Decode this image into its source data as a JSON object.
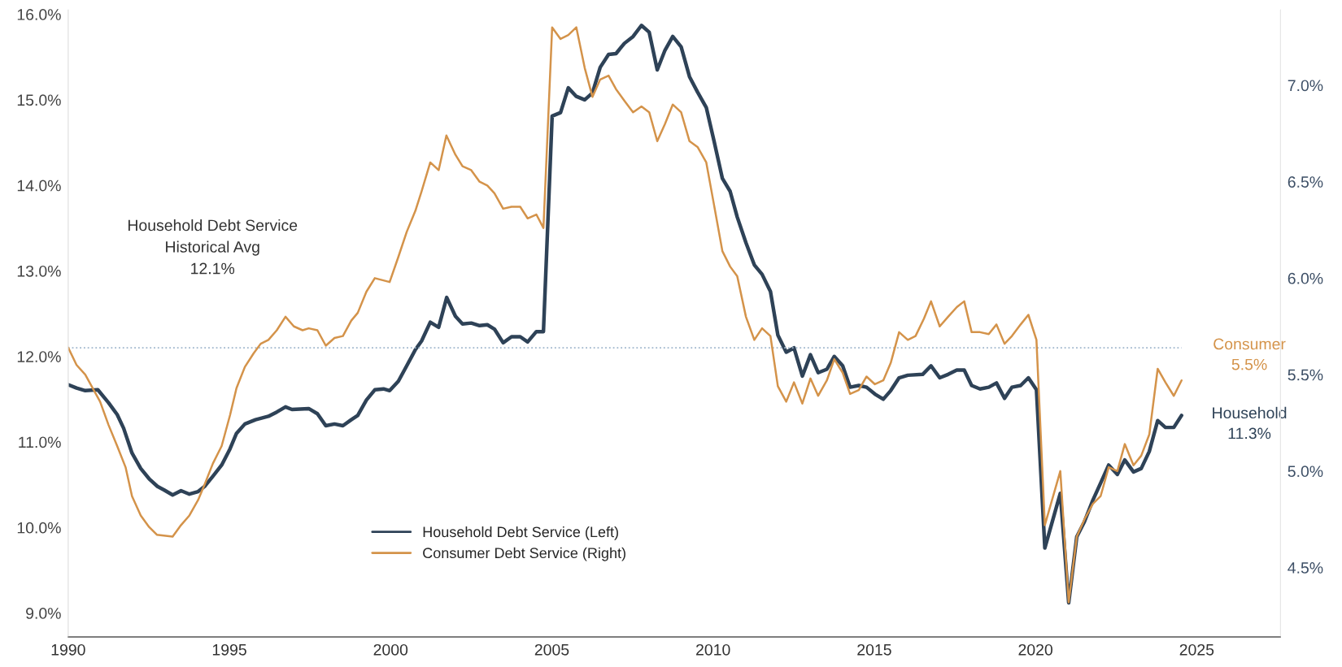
{
  "chart_data": {
    "type": "line",
    "xlim": [
      1990,
      2027.6
    ],
    "xticks": [
      1990,
      1995,
      2000,
      2005,
      2010,
      2015,
      2020,
      2025
    ],
    "ylim": [
      8.72,
      16.05
    ],
    "yticks": [
      {
        "value": 9,
        "label": "9.0%"
      },
      {
        "value": 10,
        "label": "10.0%"
      },
      {
        "value": 11,
        "label": "11.0%"
      },
      {
        "value": 12,
        "label": "12.0%"
      },
      {
        "value": 13,
        "label": "13.0%"
      },
      {
        "value": 14,
        "label": "14.0%"
      },
      {
        "value": 15,
        "label": "15.0%"
      },
      {
        "value": 16,
        "label": "16.0%"
      }
    ],
    "y2lim": [
      4.14,
      7.39
    ],
    "y2ticks": [
      {
        "value": 4.5,
        "label": "4.5%"
      },
      {
        "value": 5,
        "label": "5.0%"
      },
      {
        "value": 5.5,
        "label": "5.5%"
      },
      {
        "value": 6,
        "label": "6.0%"
      },
      {
        "value": 6.5,
        "label": "6.5%"
      },
      {
        "value": 7,
        "label": "7.0%"
      }
    ],
    "grid": false,
    "legend": "bottom left",
    "line_style": "solid",
    "series": [
      {
        "name": "Household Debt Service (Left)",
        "color": "#2e4257",
        "axis": "y",
        "x": [
          1990.0,
          1990.26,
          1990.53,
          1990.92,
          1991.25,
          1991.52,
          1991.72,
          1991.98,
          1992.25,
          1992.51,
          1992.77,
          1992.97,
          1993.24,
          1993.5,
          1993.76,
          1994.03,
          1994.23,
          1994.49,
          1994.76,
          1995.02,
          1995.22,
          1995.48,
          1995.81,
          1996.21,
          1996.47,
          1996.74,
          1996.94,
          1997.46,
          1997.73,
          1997.99,
          1998.26,
          1998.52,
          1998.78,
          1998.98,
          1999.25,
          1999.51,
          1999.78,
          1999.97,
          2000.24,
          2000.5,
          2000.77,
          2000.96,
          2001.23,
          2001.49,
          2001.74,
          2002.01,
          2002.23,
          2002.5,
          2002.76,
          2003.0,
          2003.22,
          2003.49,
          2003.75,
          2004.02,
          2004.25,
          2004.52,
          2004.74,
          2005.01,
          2005.27,
          2005.51,
          2005.76,
          2006.02,
          2006.26,
          2006.5,
          2006.76,
          2006.99,
          2007.25,
          2007.52,
          2007.78,
          2008.02,
          2008.27,
          2008.51,
          2008.75,
          2009.01,
          2009.27,
          2009.52,
          2009.79,
          2010.03,
          2010.29,
          2010.53,
          2010.75,
          2011.02,
          2011.28,
          2011.52,
          2011.78,
          2012.01,
          2012.27,
          2012.51,
          2012.77,
          2013.02,
          2013.26,
          2013.53,
          2013.76,
          2014.02,
          2014.25,
          2014.52,
          2014.76,
          2015.02,
          2015.28,
          2015.51,
          2015.77,
          2016.04,
          2016.5,
          2016.76,
          2017.03,
          2017.29,
          2017.56,
          2017.79,
          2018.02,
          2018.28,
          2018.55,
          2018.79,
          2019.04,
          2019.27,
          2019.54,
          2019.78,
          2020.03,
          2020.29,
          2020.53,
          2020.77,
          2021.03,
          2021.28,
          2021.52,
          2021.78,
          2022.02,
          2022.27,
          2022.54,
          2022.77,
          2023.04,
          2023.28,
          2023.53,
          2023.79,
          2024.03,
          2024.29,
          2024.53
        ],
        "values": [
          11.67,
          11.63,
          11.6,
          11.61,
          11.46,
          11.32,
          11.16,
          10.87,
          10.69,
          10.57,
          10.48,
          10.44,
          10.38,
          10.43,
          10.39,
          10.42,
          10.48,
          10.6,
          10.73,
          10.92,
          11.1,
          11.21,
          11.26,
          11.3,
          11.35,
          11.41,
          11.38,
          11.39,
          11.33,
          11.19,
          11.21,
          11.19,
          11.26,
          11.31,
          11.49,
          11.61,
          11.62,
          11.6,
          11.71,
          11.89,
          12.08,
          12.18,
          12.4,
          12.34,
          12.69,
          12.47,
          12.38,
          12.39,
          12.36,
          12.37,
          12.32,
          12.16,
          12.23,
          12.23,
          12.17,
          12.29,
          12.29,
          14.81,
          14.85,
          15.14,
          15.04,
          15.0,
          15.08,
          15.38,
          15.53,
          15.54,
          15.66,
          15.74,
          15.87,
          15.79,
          15.35,
          15.58,
          15.74,
          15.62,
          15.27,
          15.09,
          14.91,
          14.52,
          14.08,
          13.93,
          13.63,
          13.33,
          13.07,
          12.96,
          12.76,
          12.25,
          12.05,
          12.1,
          11.77,
          12.02,
          11.81,
          11.85,
          12.0,
          11.89,
          11.64,
          11.66,
          11.64,
          11.56,
          11.5,
          11.6,
          11.75,
          11.78,
          11.79,
          11.89,
          11.75,
          11.79,
          11.84,
          11.84,
          11.66,
          11.62,
          11.64,
          11.69,
          11.51,
          11.64,
          11.66,
          11.75,
          11.61,
          9.76,
          10.08,
          10.4,
          9.12,
          9.89,
          10.07,
          10.32,
          10.52,
          10.73,
          10.62,
          10.79,
          10.65,
          10.69,
          10.89,
          11.25,
          11.17,
          11.17,
          11.31
        ]
      },
      {
        "name": "Consumer Debt Service (Right)",
        "color": "#d4934a",
        "axis": "y2",
        "x": [
          1990.0,
          1990.26,
          1990.53,
          1990.99,
          1991.25,
          1991.52,
          1991.78,
          1991.98,
          1992.25,
          1992.51,
          1992.75,
          1993.24,
          1993.5,
          1993.76,
          1994.03,
          1994.23,
          1994.49,
          1994.76,
          1995.02,
          1995.22,
          1995.48,
          1995.75,
          1995.97,
          1996.21,
          1996.47,
          1996.74,
          1997.0,
          1997.27,
          1997.46,
          1997.73,
          1997.99,
          1998.26,
          1998.52,
          1998.78,
          1998.98,
          1999.25,
          1999.51,
          1999.97,
          2000.24,
          2000.5,
          2000.77,
          2000.96,
          2001.23,
          2001.49,
          2001.73,
          2002.01,
          2002.23,
          2002.5,
          2002.76,
          2003.0,
          2003.22,
          2003.49,
          2003.75,
          2004.02,
          2004.25,
          2004.52,
          2004.74,
          2005.01,
          2005.27,
          2005.51,
          2005.76,
          2006.02,
          2006.26,
          2006.5,
          2006.76,
          2006.99,
          2007.25,
          2007.52,
          2007.78,
          2008.02,
          2008.27,
          2008.51,
          2008.75,
          2009.01,
          2009.27,
          2009.52,
          2009.79,
          2010.03,
          2010.29,
          2010.53,
          2010.75,
          2011.02,
          2011.28,
          2011.52,
          2011.78,
          2012.01,
          2012.27,
          2012.51,
          2012.77,
          2013.02,
          2013.26,
          2013.53,
          2013.76,
          2014.02,
          2014.25,
          2014.52,
          2014.76,
          2015.02,
          2015.28,
          2015.51,
          2015.77,
          2016.04,
          2016.28,
          2016.54,
          2016.76,
          2017.03,
          2017.29,
          2017.56,
          2017.79,
          2018.02,
          2018.28,
          2018.55,
          2018.79,
          2019.04,
          2019.27,
          2019.54,
          2019.78,
          2020.03,
          2020.29,
          2020.53,
          2020.77,
          2021.03,
          2021.28,
          2021.52,
          2021.78,
          2022.02,
          2022.27,
          2022.54,
          2022.77,
          2023.04,
          2023.28,
          2023.53,
          2023.79,
          2024.03,
          2024.29,
          2024.53
        ],
        "values": [
          5.64,
          5.55,
          5.5,
          5.36,
          5.24,
          5.13,
          5.02,
          4.87,
          4.77,
          4.71,
          4.67,
          4.66,
          4.72,
          4.77,
          4.85,
          4.93,
          5.04,
          5.13,
          5.29,
          5.43,
          5.54,
          5.61,
          5.66,
          5.68,
          5.73,
          5.8,
          5.75,
          5.73,
          5.74,
          5.73,
          5.65,
          5.69,
          5.7,
          5.78,
          5.82,
          5.93,
          6.0,
          5.98,
          6.11,
          6.24,
          6.35,
          6.45,
          6.6,
          6.56,
          6.74,
          6.64,
          6.58,
          6.56,
          6.5,
          6.48,
          6.44,
          6.36,
          6.37,
          6.37,
          6.31,
          6.33,
          6.26,
          7.3,
          7.24,
          7.26,
          7.3,
          7.09,
          6.94,
          7.03,
          7.05,
          6.98,
          6.92,
          6.86,
          6.89,
          6.86,
          6.71,
          6.8,
          6.9,
          6.86,
          6.71,
          6.68,
          6.6,
          6.38,
          6.14,
          6.06,
          6.01,
          5.8,
          5.68,
          5.74,
          5.7,
          5.44,
          5.36,
          5.46,
          5.35,
          5.48,
          5.39,
          5.47,
          5.58,
          5.51,
          5.4,
          5.42,
          5.49,
          5.45,
          5.47,
          5.56,
          5.72,
          5.68,
          5.7,
          5.79,
          5.88,
          5.75,
          5.8,
          5.85,
          5.88,
          5.72,
          5.72,
          5.71,
          5.76,
          5.66,
          5.7,
          5.76,
          5.81,
          5.68,
          4.72,
          4.86,
          5.0,
          4.32,
          4.66,
          4.75,
          4.83,
          4.87,
          5.02,
          5.0,
          5.14,
          5.03,
          5.08,
          5.19,
          5.53,
          5.46,
          5.39,
          5.47
        ]
      }
    ],
    "ref_lines": [
      {
        "axis": "y",
        "value": 12.1,
        "color": "#9fb6cc",
        "line_style": "dotted"
      }
    ],
    "annotations": [
      "Household\n11.3%",
      "Consumer\n5.5%",
      "Household Debt Service\nHistorical Avg\n12.1%"
    ]
  }
}
